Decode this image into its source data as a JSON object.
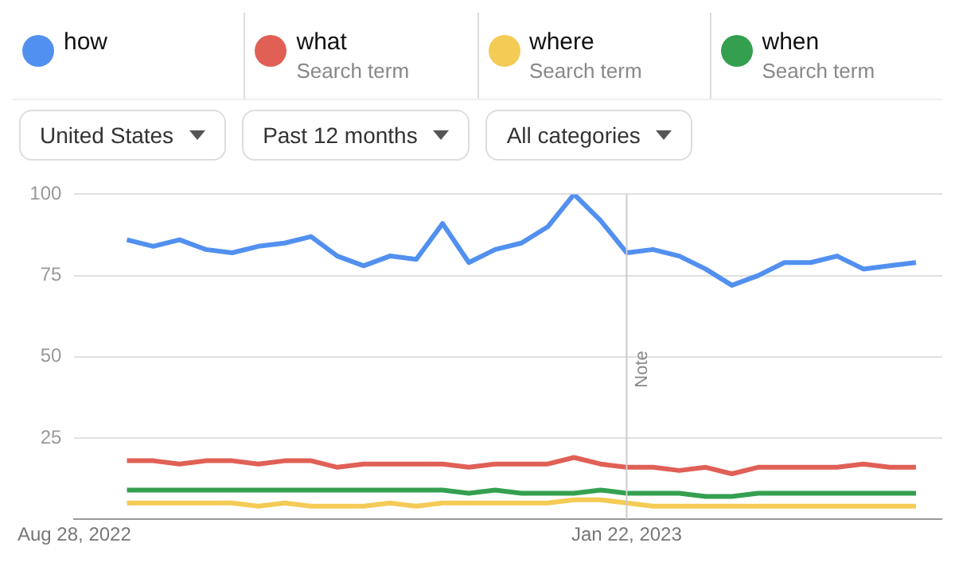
{
  "chart_data": {
    "type": "line",
    "x": [
      "2022-09-11",
      "2022-09-18",
      "2022-09-25",
      "2022-10-02",
      "2022-10-09",
      "2022-10-16",
      "2022-10-23",
      "2022-10-30",
      "2022-11-06",
      "2022-11-13",
      "2022-11-20",
      "2022-11-27",
      "2022-12-04",
      "2022-12-11",
      "2022-12-18",
      "2022-12-25",
      "2023-01-01",
      "2023-01-08",
      "2023-01-15",
      "2023-01-22",
      "2023-01-29",
      "2023-02-05",
      "2023-02-12",
      "2023-02-19",
      "2023-02-26",
      "2023-03-05",
      "2023-03-12",
      "2023-03-19",
      "2023-03-26",
      "2023-04-02",
      "2023-04-09"
    ],
    "series": [
      {
        "name": "how",
        "color": "#5290f0",
        "values": [
          86,
          84,
          86,
          83,
          82,
          84,
          85,
          87,
          81,
          78,
          81,
          80,
          91,
          79,
          83,
          85,
          90,
          100,
          92,
          82,
          83,
          81,
          77,
          72,
          75,
          79,
          79,
          81,
          77,
          78,
          79
        ]
      },
      {
        "name": "what",
        "color": "#e06055",
        "values": [
          18,
          18,
          17,
          18,
          18,
          17,
          18,
          18,
          16,
          17,
          17,
          17,
          17,
          16,
          17,
          17,
          17,
          19,
          17,
          16,
          16,
          15,
          16,
          14,
          16,
          16,
          16,
          16,
          17,
          16,
          16
        ]
      },
      {
        "name": "where",
        "color": "#f4cb55",
        "values": [
          5,
          5,
          5,
          5,
          5,
          4,
          5,
          4,
          4,
          4,
          5,
          4,
          5,
          5,
          5,
          5,
          5,
          6,
          6,
          5,
          4,
          4,
          4,
          4,
          4,
          4,
          4,
          4,
          4,
          4,
          4
        ]
      },
      {
        "name": "when",
        "color": "#34a04f",
        "values": [
          9,
          9,
          9,
          9,
          9,
          9,
          9,
          9,
          9,
          9,
          9,
          9,
          9,
          8,
          9,
          8,
          8,
          8,
          9,
          8,
          8,
          8,
          7,
          7,
          8,
          8,
          8,
          8,
          8,
          8,
          8
        ]
      }
    ],
    "xlim": [
      "2022-08-28",
      "2023-04-16"
    ],
    "xticks": [
      {
        "value": "2022-08-28",
        "label": "Aug 28, 2022"
      },
      {
        "value": "2023-01-22",
        "label": "Jan 22, 2023"
      }
    ],
    "ylim": [
      0,
      100
    ],
    "yticks": [
      25,
      50,
      75,
      100
    ],
    "grid": "y",
    "legend": "top",
    "marker": "none",
    "line_style": "solid",
    "ref_lines": [
      {
        "axis": "x",
        "value": "2023-01-22",
        "label": "Note",
        "color": "#cccccc"
      }
    ],
    "annotations": [
      "Search term",
      "Search term",
      "Search term",
      "United States",
      "Past 12 months",
      "All categories"
    ]
  }
}
